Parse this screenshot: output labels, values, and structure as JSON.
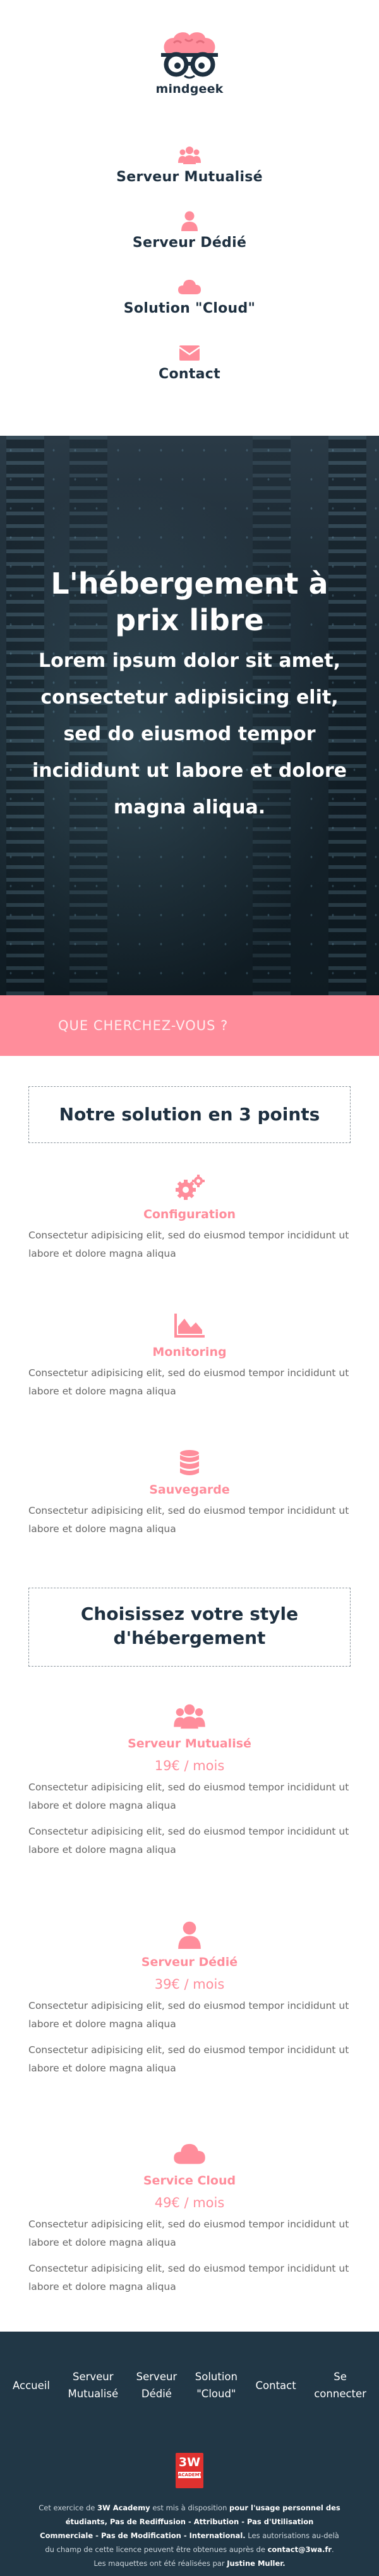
{
  "brand": {
    "name": "mindgeek",
    "logo_icon": "brain-glasses-logo"
  },
  "nav": {
    "items": [
      {
        "label": "Serveur Mutualisé",
        "icon": "users-icon"
      },
      {
        "label": "Serveur Dédié",
        "icon": "user-icon"
      },
      {
        "label": "Solution \"Cloud\"",
        "icon": "cloud-icon"
      },
      {
        "label": "Contact",
        "icon": "envelope-icon"
      }
    ]
  },
  "hero": {
    "title": "L'hébergement à prix libre",
    "subtitle": "Lorem ipsum dolor sit amet, consectetur adipisicing elit, sed do eiusmod tempor incididunt ut labore et dolore magna aliqua."
  },
  "search": {
    "placeholder": "QUE CHERCHEZ-VOUS ?"
  },
  "features": {
    "title": "Notre solution en 3 points",
    "items": [
      {
        "title": "Configuration",
        "icon": "gears-icon",
        "text": "Consectetur adipisicing elit, sed do eiusmod tempor incididunt ut labore et dolore magna aliqua"
      },
      {
        "title": "Monitoring",
        "icon": "area-chart-icon",
        "text": "Consectetur adipisicing elit, sed do eiusmod tempor incididunt ut labore et dolore magna aliqua"
      },
      {
        "title": "Sauvegarde",
        "icon": "database-icon",
        "text": "Consectetur adipisicing elit, sed do eiusmod tempor incididunt ut labore et dolore magna aliqua"
      }
    ]
  },
  "plans": {
    "title": "Choisissez votre style d'hébergement",
    "items": [
      {
        "title": "Serveur Mutualisé",
        "icon": "users-icon",
        "price": "19€ / mois",
        "text1": "Consectetur adipisicing elit, sed do eiusmod tempor incididunt ut labore et dolore magna aliqua",
        "text2": "Consectetur adipisicing elit, sed do eiusmod tempor incididunt ut labore et dolore magna aliqua"
      },
      {
        "title": "Serveur Dédié",
        "icon": "user-icon",
        "price": "39€ / mois",
        "text1": "Consectetur adipisicing elit, sed do eiusmod tempor incididunt ut labore et dolore magna aliqua",
        "text2": "Consectetur adipisicing elit, sed do eiusmod tempor incididunt ut labore et dolore magna aliqua"
      },
      {
        "title": "Service Cloud",
        "icon": "cloud-icon",
        "price": "49€ / mois",
        "text1": "Consectetur adipisicing elit, sed do eiusmod tempor incididunt ut labore et dolore magna aliqua",
        "text2": "Consectetur adipisicing elit, sed do eiusmod tempor incididunt ut labore et dolore magna aliqua"
      }
    ]
  },
  "footer": {
    "links": [
      {
        "line1": "Accueil",
        "line2": ""
      },
      {
        "line1": "Serveur",
        "line2": "Mutualisé"
      },
      {
        "line1": "Serveur",
        "line2": "Dédié"
      },
      {
        "line1": "Solution",
        "line2": "\"Cloud\""
      },
      {
        "line1": "Contact",
        "line2": ""
      },
      {
        "line1": "Se",
        "line2": "connecter"
      }
    ],
    "badge": {
      "top": "3W",
      "bottom": "ACADEMY"
    },
    "legal": {
      "p1": "Cet exercice de ",
      "p1b": "3W Academy",
      "p2": " est mis à disposition ",
      "p2b": "pour l'usage personnel des étudiants, Pas de Rediffusion - Attribution - Pas d'Utilisation Commerciale - Pas de Modification - International.",
      "p3": " Les autorisations au-delà du champ de cette licence peuvent être obtenues auprès de ",
      "p3b": "contact@3wa.fr",
      "p4": ". Les maquettes ont été réalisées par ",
      "p4b": "Justine Muller."
    }
  },
  "colors": {
    "accent": "#ff8d9b",
    "navy": "#1e3040",
    "footer_bg": "#213746",
    "text_gray": "#666666"
  }
}
